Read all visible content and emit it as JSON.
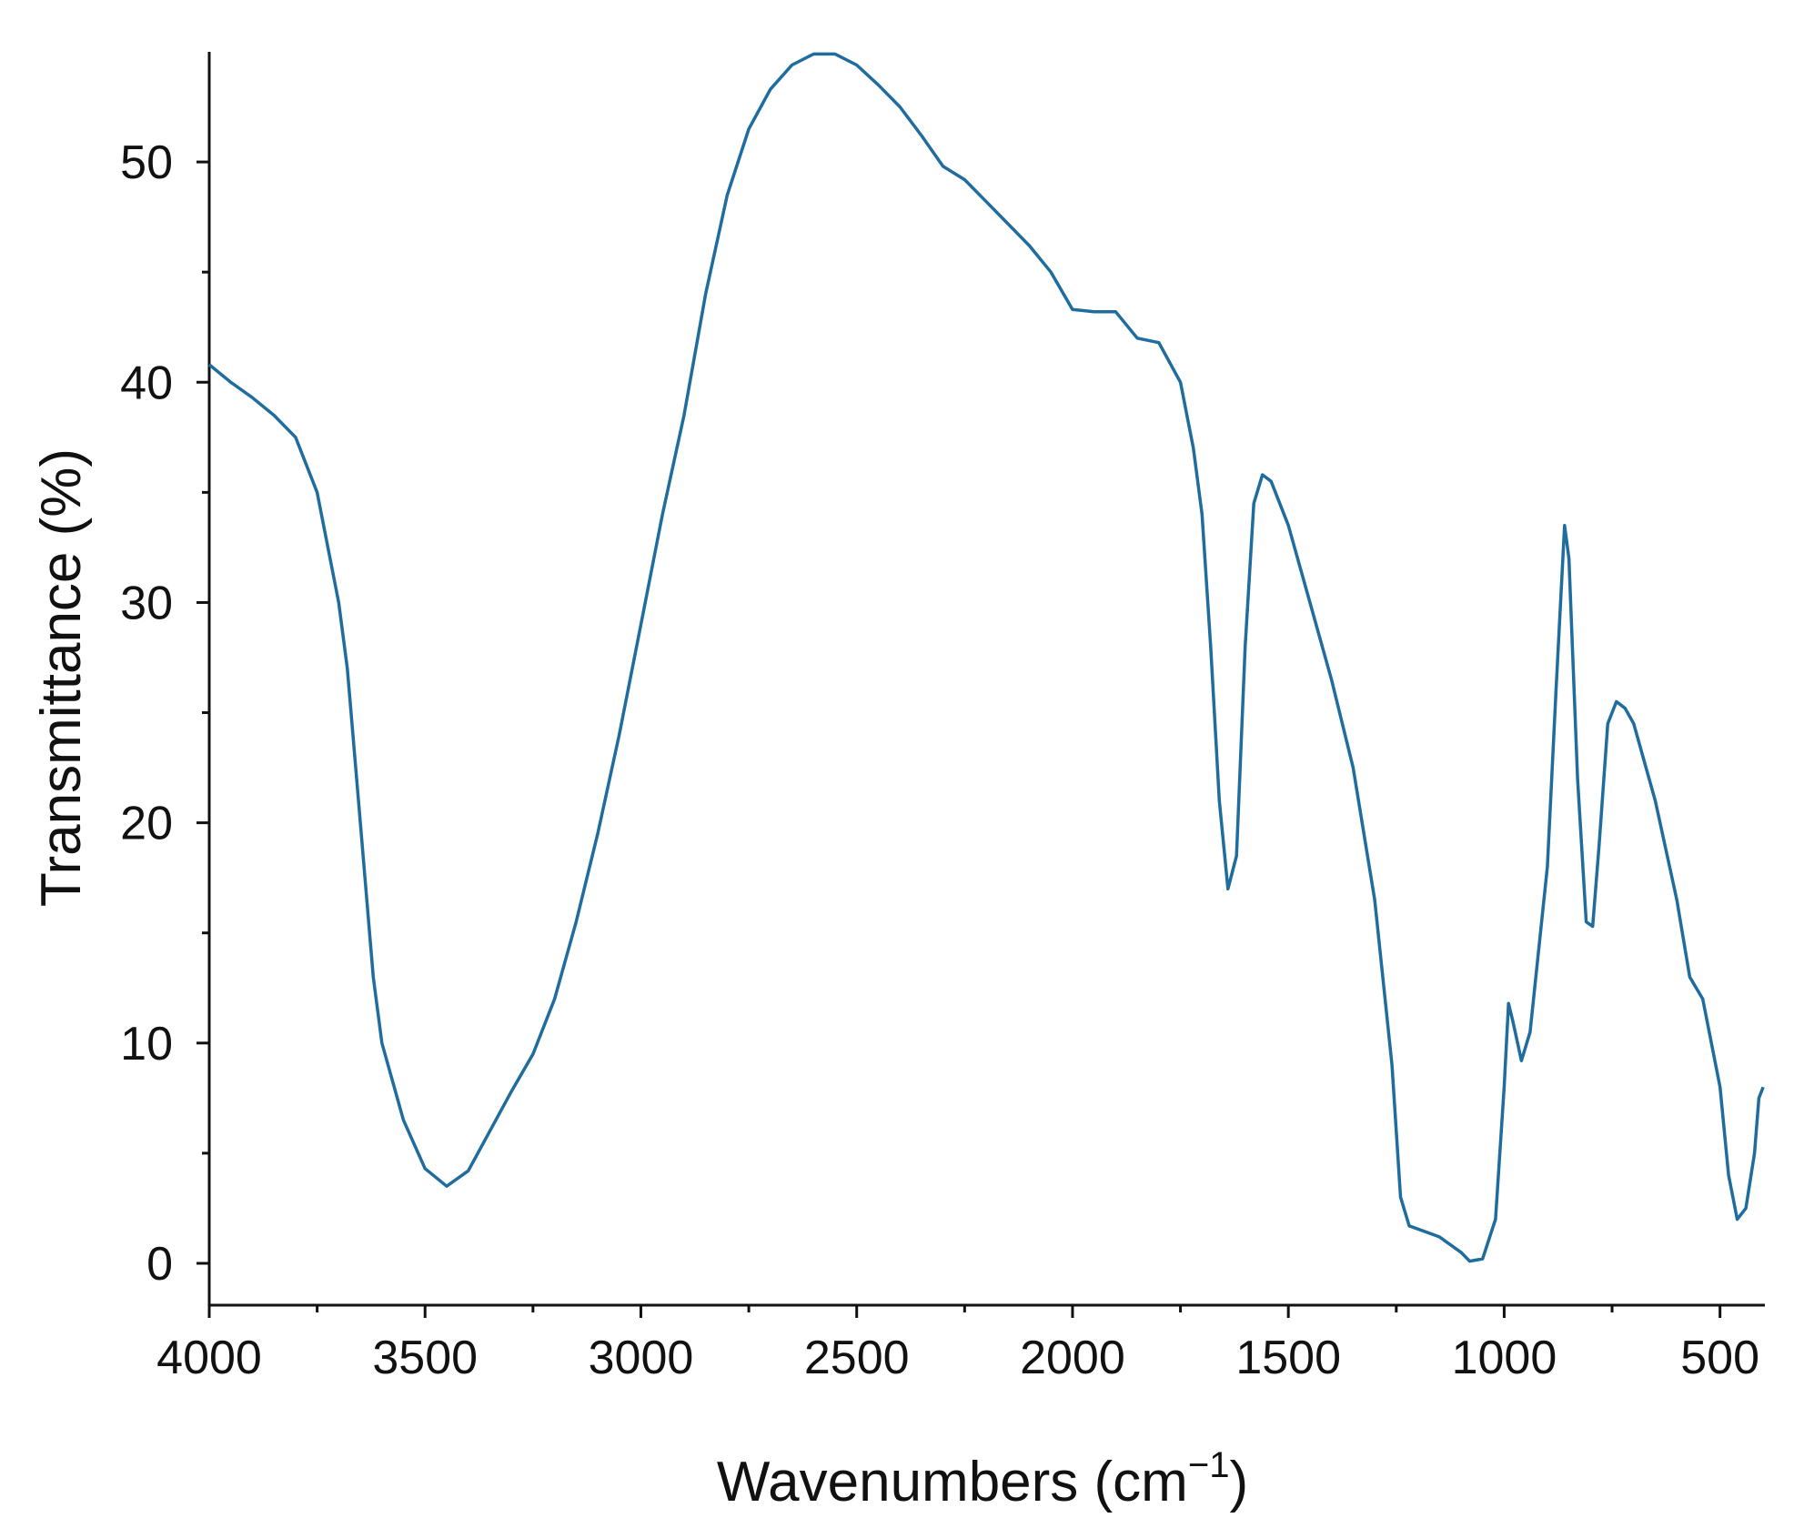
{
  "chart_data": {
    "type": "line",
    "x_label": {
      "text": "Wavenumbers (cm",
      "superscript": "−1",
      "end": ")"
    },
    "y_label": "Transmittance (%)",
    "x": [
      4000,
      3950,
      3900,
      3850,
      3800,
      3750,
      3700,
      3680,
      3650,
      3620,
      3600,
      3550,
      3500,
      3450,
      3400,
      3350,
      3300,
      3250,
      3200,
      3150,
      3100,
      3050,
      3000,
      2950,
      2900,
      2850,
      2800,
      2750,
      2700,
      2650,
      2600,
      2550,
      2500,
      2450,
      2400,
      2350,
      2300,
      2250,
      2200,
      2150,
      2100,
      2050,
      2000,
      1950,
      1900,
      1850,
      1800,
      1750,
      1720,
      1700,
      1680,
      1660,
      1640,
      1620,
      1600,
      1580,
      1560,
      1540,
      1500,
      1450,
      1400,
      1350,
      1300,
      1260,
      1240,
      1220,
      1150,
      1100,
      1080,
      1050,
      1020,
      1000,
      990,
      980,
      960,
      940,
      900,
      880,
      860,
      850,
      830,
      810,
      795,
      780,
      760,
      740,
      720,
      700,
      650,
      600,
      570,
      540,
      520,
      500,
      480,
      460,
      440,
      420,
      410,
      400
    ],
    "series": [
      {
        "color": "#1f6c9e",
        "values": [
          40.8,
          40,
          39.3,
          38.5,
          37.5,
          35,
          30,
          27,
          20,
          13,
          10,
          6.5,
          4.3,
          3.5,
          4.2,
          6,
          7.8,
          9.5,
          12,
          15.5,
          19.5,
          24,
          29,
          34,
          38.5,
          44,
          48.5,
          51.5,
          53.3,
          54.4,
          54.9,
          54.9,
          54.4,
          53.5,
          52.5,
          51.2,
          49.8,
          49.2,
          48.2,
          47.2,
          46.2,
          45,
          43.3,
          43.2,
          43.2,
          42,
          41.8,
          40,
          37,
          34,
          28,
          21,
          17,
          18.5,
          28,
          34.5,
          35.8,
          35.5,
          33.5,
          30,
          26.5,
          22.5,
          16.5,
          9,
          3,
          1.7,
          1.2,
          0.5,
          0.1,
          0.2,
          2,
          8,
          11.8,
          11,
          9.2,
          10.5,
          18,
          26,
          33.5,
          32,
          22,
          15.5,
          15.3,
          19,
          24.5,
          25.5,
          25.2,
          24.5,
          21,
          16.5,
          13,
          12,
          10,
          8,
          4,
          2,
          2.5,
          5,
          7.5,
          8
        ]
      }
    ],
    "xlim": [
      4000,
      396
    ],
    "ylim": [
      -1.9,
      55
    ],
    "xticks": [
      4000,
      3500,
      3000,
      2500,
      2000,
      1500,
      1000,
      500
    ],
    "xminorticks": [
      3750,
      3250,
      2750,
      2250,
      1750,
      1250,
      750
    ],
    "yticks": [
      0,
      10,
      20,
      30,
      40,
      50
    ],
    "yminorticks": [
      5,
      15,
      25,
      35,
      45
    ]
  }
}
